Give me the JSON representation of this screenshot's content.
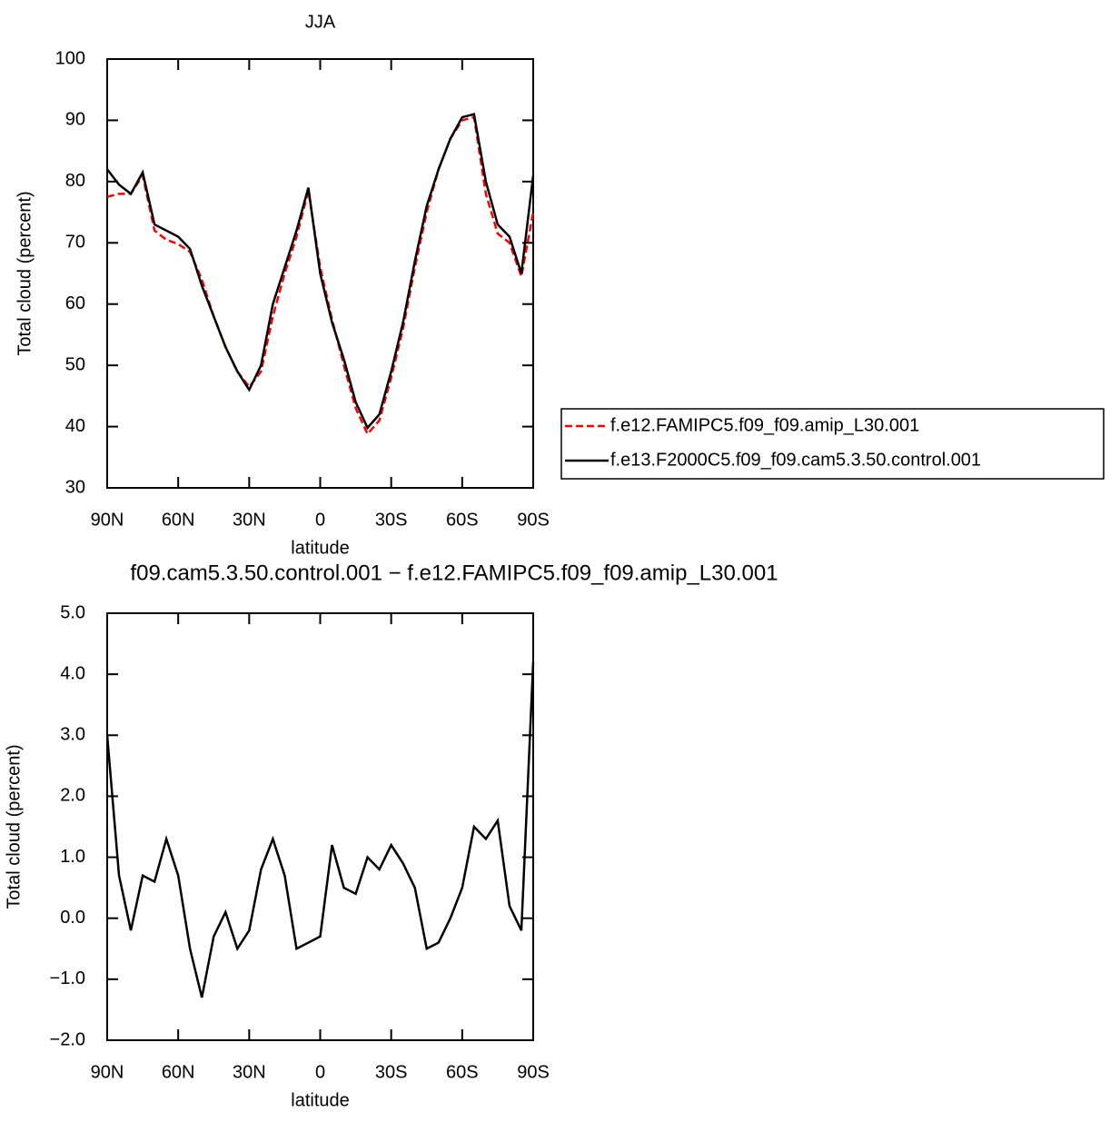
{
  "chart_data": [
    {
      "type": "line",
      "title": "JJA",
      "xlabel": "latitude",
      "ylabel": "Total cloud (percent)",
      "x": [
        90,
        85,
        80,
        75,
        70,
        65,
        60,
        55,
        50,
        45,
        40,
        35,
        30,
        25,
        20,
        15,
        10,
        5,
        0,
        -5,
        -10,
        -15,
        -20,
        -25,
        -30,
        -35,
        -40,
        -45,
        -50,
        -55,
        -60,
        -65,
        -70,
        -75,
        -80,
        -85,
        -90
      ],
      "xlim": [
        90,
        -90
      ],
      "xticks": [
        {
          "value": 90,
          "label": "90N"
        },
        {
          "value": 60,
          "label": "60N"
        },
        {
          "value": 30,
          "label": "30N"
        },
        0,
        {
          "value": -30,
          "label": "30S"
        },
        {
          "value": -60,
          "label": "60S"
        },
        {
          "value": -90,
          "label": "90S"
        }
      ],
      "ylim": [
        30,
        100
      ],
      "yticks": [
        30,
        40,
        50,
        60,
        70,
        80,
        90,
        100
      ],
      "series": [
        {
          "name": "f.e12.FAMIPC5.f09_f09.amip_L30.001",
          "color": "#ff0000",
          "linestyle": "dashed",
          "values": [
            77.5,
            78,
            78,
            81,
            72,
            70.5,
            69.8,
            68.5,
            64,
            58,
            53,
            49,
            46.5,
            49,
            58,
            65,
            71,
            78.5,
            66,
            57.5,
            50,
            43,
            38.8,
            41,
            48,
            56,
            66,
            75,
            82,
            87,
            90,
            90.5,
            78,
            71.5,
            70,
            64.5,
            75
          ]
        },
        {
          "name": "f.e13.F2000C5.f09_f09.cam5.3.50.control.001",
          "color": "#000000",
          "linestyle": "solid",
          "values": [
            82,
            79.5,
            78,
            81.5,
            73,
            72,
            71,
            69,
            63,
            58,
            53,
            49,
            46,
            50,
            60,
            66,
            72,
            79,
            65,
            57,
            51,
            44,
            39.8,
            42,
            49,
            57,
            67,
            76,
            82,
            87,
            90.5,
            91,
            80,
            73,
            71,
            65,
            81
          ]
        }
      ]
    },
    {
      "type": "line",
      "title": "f09.cam5.3.50.control.001 − f.e12.FAMIPC5.f09_f09.amip_L30.001",
      "xlabel": "latitude",
      "ylabel": "Total cloud (percent)",
      "x": [
        90,
        85,
        80,
        75,
        70,
        65,
        60,
        55,
        50,
        45,
        40,
        35,
        30,
        25,
        20,
        15,
        10,
        5,
        0,
        -5,
        -10,
        -15,
        -20,
        -25,
        -30,
        -35,
        -40,
        -45,
        -50,
        -55,
        -60,
        -65,
        -70,
        -75,
        -80,
        -85,
        -90
      ],
      "xlim": [
        90,
        -90
      ],
      "xticks": [
        {
          "value": 90,
          "label": "90N"
        },
        {
          "value": 60,
          "label": "60N"
        },
        {
          "value": 30,
          "label": "30N"
        },
        0,
        {
          "value": -30,
          "label": "30S"
        },
        {
          "value": -60,
          "label": "60S"
        },
        {
          "value": -90,
          "label": "90S"
        }
      ],
      "ylim": [
        -2,
        5
      ],
      "yticks": [
        {
          "value": -2,
          "label": "−2.0"
        },
        {
          "value": -1,
          "label": "−1.0"
        },
        {
          "value": 0,
          "label": "0.0"
        },
        {
          "value": 1,
          "label": "1.0"
        },
        {
          "value": 2,
          "label": "2.0"
        },
        {
          "value": 3,
          "label": "3.0"
        },
        {
          "value": 4,
          "label": "4.0"
        },
        {
          "value": 5,
          "label": "5.0"
        }
      ],
      "series": [
        {
          "color": "#000000",
          "linestyle": "solid",
          "values": [
            3.0,
            0.7,
            -0.2,
            0.7,
            0.6,
            1.3,
            0.7,
            -0.5,
            -1.3,
            -0.3,
            0.1,
            -0.5,
            -0.2,
            0.8,
            1.3,
            0.7,
            -0.5,
            -0.4,
            -0.3,
            1.2,
            0.5,
            0.4,
            1.0,
            0.8,
            1.2,
            0.9,
            0.5,
            -0.5,
            -0.4,
            0.0,
            0.5,
            1.5,
            1.3,
            1.6,
            0.2,
            -0.2,
            4.2
          ]
        }
      ]
    }
  ]
}
